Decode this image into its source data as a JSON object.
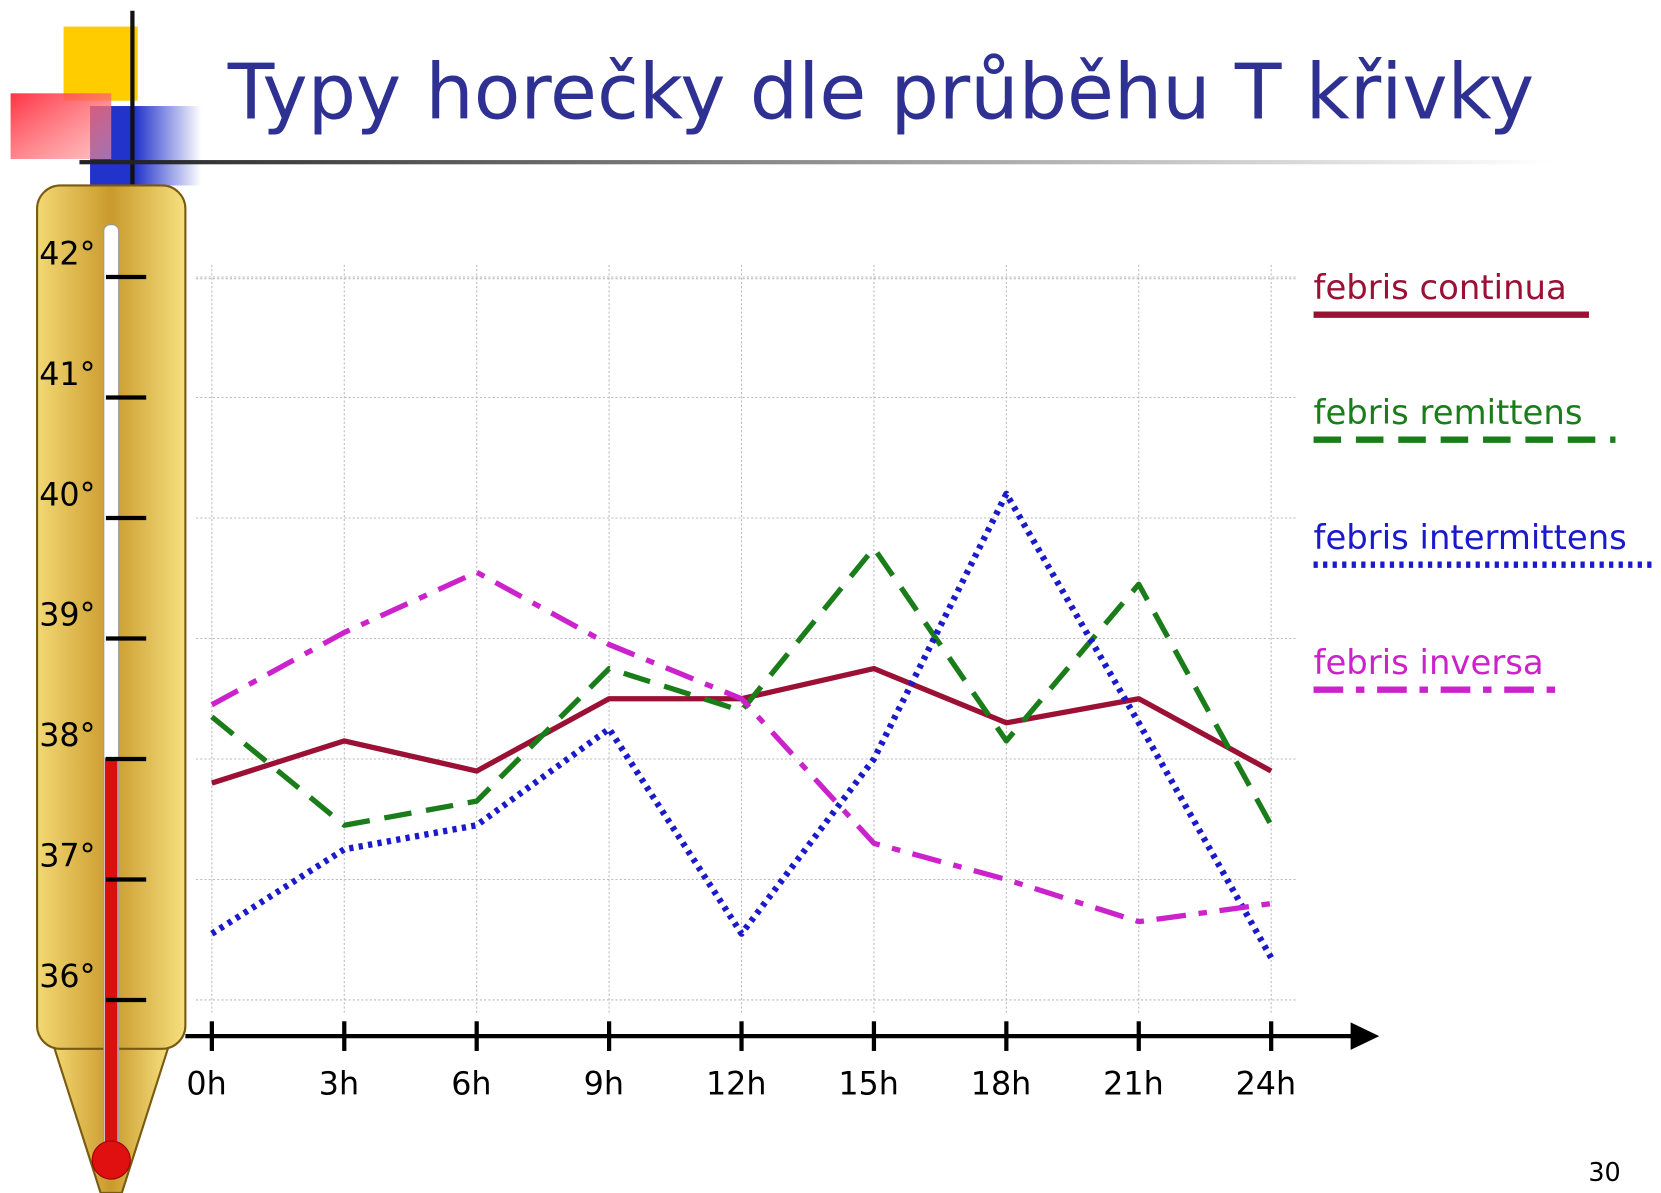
{
  "chart_data": {
    "type": "line",
    "title": "Typy horečky dle průběhu T křivky",
    "categories": [
      "0h",
      "3h",
      "6h",
      "9h",
      "12h",
      "15h",
      "18h",
      "21h",
      "24h"
    ],
    "series": [
      {
        "name": "febris continua",
        "color": "#9b1035",
        "style": "solid",
        "values": [
          37.8,
          38.15,
          37.9,
          38.5,
          38.5,
          38.75,
          38.3,
          38.5,
          37.9
        ]
      },
      {
        "name": "febris remittens",
        "color": "#1a7d1a",
        "style": "dashed",
        "values": [
          38.35,
          37.45,
          37.65,
          38.75,
          38.4,
          39.75,
          38.15,
          39.45,
          37.45
        ]
      },
      {
        "name": "febris intermittens",
        "color": "#1a1acc",
        "style": "dotted",
        "values": [
          36.55,
          37.25,
          37.45,
          38.25,
          36.55,
          38.0,
          40.2,
          38.3,
          36.35
        ]
      },
      {
        "name": "febris inversa",
        "color": "#cc22cc",
        "style": "dashdot",
        "values": [
          38.45,
          39.05,
          39.55,
          38.95,
          38.5,
          37.3,
          37.0,
          36.65,
          36.8
        ]
      }
    ],
    "ylim": [
      35.7,
      42.1
    ],
    "yticks": [
      {
        "value": 42,
        "label": "42°"
      },
      {
        "value": 41,
        "label": "41°"
      },
      {
        "value": 40,
        "label": "40°"
      },
      {
        "value": 39,
        "label": "39°"
      },
      {
        "value": 38,
        "label": "38°"
      },
      {
        "value": 37,
        "label": "37°"
      },
      {
        "value": 36,
        "label": "36°"
      }
    ],
    "grid": true
  },
  "page_number": "30"
}
